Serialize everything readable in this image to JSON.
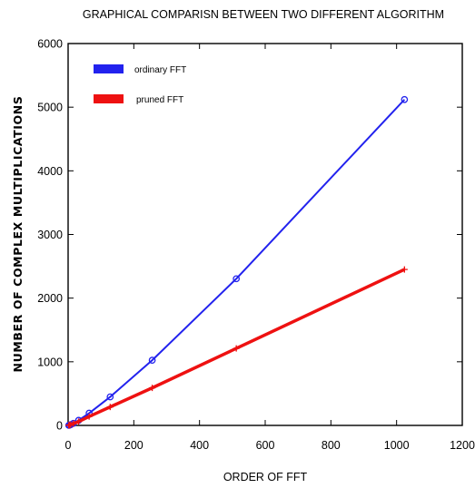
{
  "chart_data": {
    "type": "line",
    "title": "GRAPHICAL COMPARISN BETWEEN TWO DIFFERENT ALGORITHM",
    "xlabel": "ORDER OF FFT",
    "ylabel": "NUMBER OF COMPLEX MULTIPLICATIONS",
    "xlim": [
      0,
      1200
    ],
    "ylim": [
      0,
      6000
    ],
    "xticks": [
      0,
      200,
      400,
      600,
      800,
      1000,
      1200
    ],
    "yticks": [
      0,
      1000,
      2000,
      3000,
      4000,
      5000,
      6000
    ],
    "grid": false,
    "legend_position": "top-left",
    "series": [
      {
        "name": "ordinary FFT",
        "color": "#2222ee",
        "marker": "circle",
        "x": [
          2,
          4,
          8,
          16,
          32,
          64,
          128,
          256,
          512,
          1024
        ],
        "y": [
          1,
          4,
          12,
          32,
          80,
          192,
          448,
          1024,
          2304,
          5120
        ]
      },
      {
        "name": "pruned FFT",
        "color": "#ee1111",
        "marker": "plus",
        "x": [
          2,
          4,
          8,
          16,
          32,
          64,
          128,
          256,
          512,
          1024
        ],
        "y": [
          2,
          5,
          12,
          28,
          60,
          140,
          290,
          590,
          1210,
          2450
        ]
      }
    ]
  }
}
